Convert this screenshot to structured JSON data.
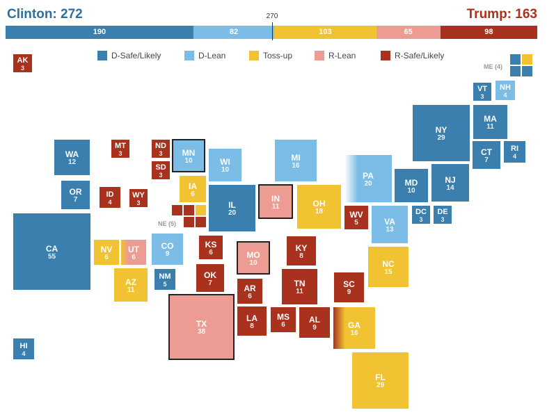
{
  "header": {
    "clinton": "Clinton: 272",
    "trump": "Trump: 163",
    "marker": "270"
  },
  "colors": {
    "d_safe": "#3a7fae",
    "d_lean": "#7bbde6",
    "tossup": "#f1c232",
    "r_lean": "#ec9c93",
    "r_safe": "#a8321e"
  },
  "bar": [
    {
      "value": "190",
      "category": "d_safe",
      "ev": 190
    },
    {
      "value": "82",
      "category": "d_lean",
      "ev": 82
    },
    {
      "value": "103",
      "category": "tossup",
      "ev": 103
    },
    {
      "value": "65",
      "category": "r_lean",
      "ev": 65
    },
    {
      "value": "98",
      "category": "r_safe",
      "ev": 98
    }
  ],
  "legend": [
    {
      "label": "D-Safe/Likely",
      "category": "d_safe"
    },
    {
      "label": "D-Lean",
      "category": "d_lean"
    },
    {
      "label": "Toss-up",
      "category": "tossup"
    },
    {
      "label": "R-Lean",
      "category": "r_lean"
    },
    {
      "label": "R-Safe/Likely",
      "category": "r_safe"
    }
  ],
  "groups": {
    "me": "ME (4)",
    "ne": "NE (5)"
  },
  "states": [
    {
      "abbr": "AK",
      "ev": "3",
      "category": "r_safe"
    },
    {
      "abbr": "HI",
      "ev": "4",
      "category": "d_safe"
    },
    {
      "abbr": "WA",
      "ev": "12",
      "category": "d_safe"
    },
    {
      "abbr": "OR",
      "ev": "7",
      "category": "d_safe"
    },
    {
      "abbr": "CA",
      "ev": "55",
      "category": "d_safe"
    },
    {
      "abbr": "MT",
      "ev": "3",
      "category": "r_safe"
    },
    {
      "abbr": "ID",
      "ev": "4",
      "category": "r_safe"
    },
    {
      "abbr": "WY",
      "ev": "3",
      "category": "r_safe"
    },
    {
      "abbr": "NV",
      "ev": "6",
      "category": "tossup"
    },
    {
      "abbr": "UT",
      "ev": "6",
      "category": "r_lean",
      "fade_left": "tossup"
    },
    {
      "abbr": "AZ",
      "ev": "11",
      "category": "tossup"
    },
    {
      "abbr": "CO",
      "ev": "9",
      "category": "d_lean"
    },
    {
      "abbr": "NM",
      "ev": "5",
      "category": "d_safe"
    },
    {
      "abbr": "ND",
      "ev": "3",
      "category": "r_safe"
    },
    {
      "abbr": "SD",
      "ev": "3",
      "category": "r_safe"
    },
    {
      "abbr": "KS",
      "ev": "6",
      "category": "r_safe"
    },
    {
      "abbr": "OK",
      "ev": "7",
      "category": "r_safe"
    },
    {
      "abbr": "TX",
      "ev": "38",
      "category": "r_lean",
      "outline": true
    },
    {
      "abbr": "MN",
      "ev": "10",
      "category": "d_lean",
      "outline": true
    },
    {
      "abbr": "IA",
      "ev": "6",
      "category": "tossup"
    },
    {
      "abbr": "MO",
      "ev": "10",
      "category": "r_lean",
      "outline": true
    },
    {
      "abbr": "AR",
      "ev": "6",
      "category": "r_safe"
    },
    {
      "abbr": "LA",
      "ev": "8",
      "category": "r_safe"
    },
    {
      "abbr": "WI",
      "ev": "10",
      "category": "d_lean"
    },
    {
      "abbr": "IL",
      "ev": "20",
      "category": "d_safe"
    },
    {
      "abbr": "MI",
      "ev": "16",
      "category": "d_lean"
    },
    {
      "abbr": "IN",
      "ev": "11",
      "category": "r_lean",
      "outline": true
    },
    {
      "abbr": "OH",
      "ev": "18",
      "category": "tossup"
    },
    {
      "abbr": "KY",
      "ev": "8",
      "category": "r_safe"
    },
    {
      "abbr": "TN",
      "ev": "11",
      "category": "r_safe"
    },
    {
      "abbr": "MS",
      "ev": "6",
      "category": "r_safe"
    },
    {
      "abbr": "AL",
      "ev": "9",
      "category": "r_safe"
    },
    {
      "abbr": "GA",
      "ev": "16",
      "category": "tossup",
      "fade_left": "r_safe"
    },
    {
      "abbr": "FL",
      "ev": "29",
      "category": "tossup"
    },
    {
      "abbr": "SC",
      "ev": "9",
      "category": "r_safe"
    },
    {
      "abbr": "NC",
      "ev": "15",
      "category": "tossup"
    },
    {
      "abbr": "WV",
      "ev": "5",
      "category": "r_safe"
    },
    {
      "abbr": "VA",
      "ev": "13",
      "category": "d_lean"
    },
    {
      "abbr": "PA",
      "ev": "20",
      "category": "d_lean",
      "fade_left": "#ffffff"
    },
    {
      "abbr": "NY",
      "ev": "29",
      "category": "d_safe"
    },
    {
      "abbr": "MD",
      "ev": "10",
      "category": "d_safe"
    },
    {
      "abbr": "DC",
      "ev": "3",
      "category": "d_safe"
    },
    {
      "abbr": "DE",
      "ev": "3",
      "category": "d_safe"
    },
    {
      "abbr": "NJ",
      "ev": "14",
      "category": "d_safe"
    },
    {
      "abbr": "CT",
      "ev": "7",
      "category": "d_safe"
    },
    {
      "abbr": "RI",
      "ev": "4",
      "category": "d_safe"
    },
    {
      "abbr": "MA",
      "ev": "11",
      "category": "d_safe"
    },
    {
      "abbr": "VT",
      "ev": "3",
      "category": "d_safe"
    },
    {
      "abbr": "NH",
      "ev": "4",
      "category": "d_lean"
    }
  ],
  "me_cells": [
    {
      "category": "d_safe"
    },
    {
      "category": "tossup"
    },
    {
      "category": "d_safe"
    },
    {
      "category": "d_safe"
    }
  ],
  "ne_cells": [
    {
      "category": "r_safe"
    },
    {
      "category": "r_safe"
    },
    {
      "category": "tossup"
    },
    {
      "category": "r_safe"
    },
    {
      "category": "r_safe"
    }
  ]
}
